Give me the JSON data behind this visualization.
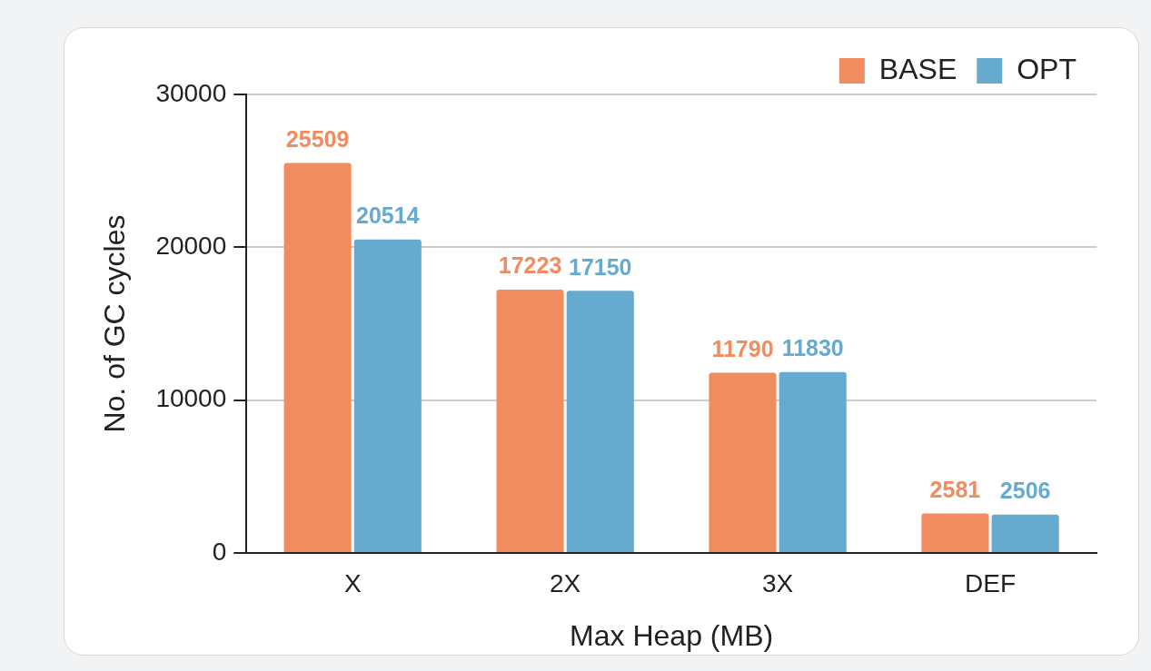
{
  "chart_data": {
    "type": "bar",
    "xlabel": "Max Heap (MB)",
    "ylabel": "No. of GC cycles",
    "categories": [
      "X",
      "2X",
      "3X",
      "DEF"
    ],
    "series": [
      {
        "name": "BASE",
        "color": "#f08c60",
        "values": [
          25509,
          17223,
          11790,
          2581
        ]
      },
      {
        "name": "OPT",
        "color": "#67aad0",
        "values": [
          20514,
          17150,
          11830,
          2506
        ]
      }
    ],
    "ylim": [
      0,
      30000
    ],
    "yticks": [
      0,
      10000,
      20000,
      30000
    ],
    "grid": "y",
    "legend": "top right",
    "data_labels": true
  }
}
